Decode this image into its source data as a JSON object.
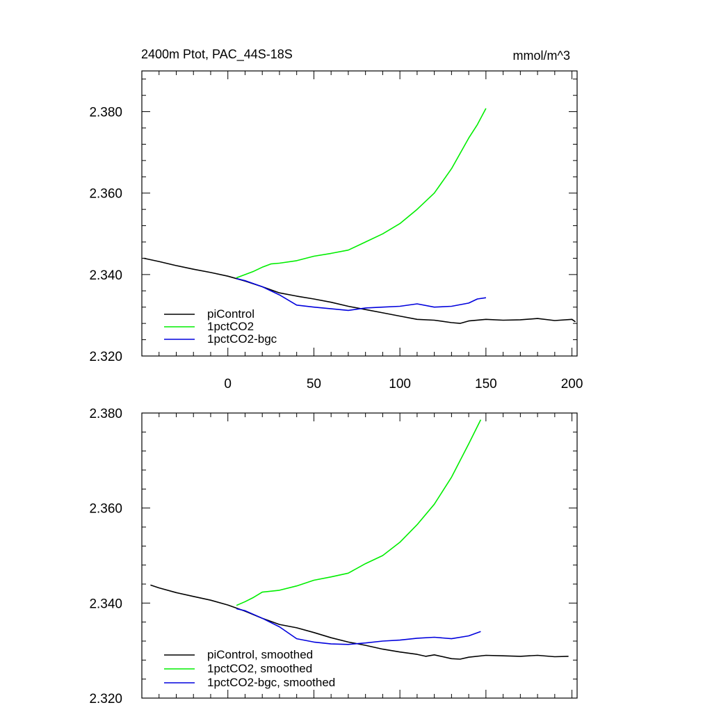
{
  "chart_data": [
    {
      "type": "line",
      "title": "2400m Ptot, PAC_44S-18S",
      "units": "mmol/m^3",
      "xlim": [
        -50,
        203
      ],
      "ylim": [
        2.32,
        2.39
      ],
      "x_ticks": [
        0,
        50,
        100,
        150,
        200
      ],
      "x_tick_labels": [
        "0",
        "50",
        "100",
        "150",
        "200"
      ],
      "y_ticks": [
        2.32,
        2.34,
        2.36,
        2.38
      ],
      "y_tick_labels": [
        "2.320",
        "2.340",
        "2.360",
        "2.380"
      ],
      "legend_position": "bottom-left",
      "series": [
        {
          "name": "piControl",
          "color": "#000000",
          "x": [
            -49,
            -40,
            -30,
            -20,
            -10,
            0,
            10,
            20,
            30,
            40,
            50,
            60,
            70,
            80,
            90,
            100,
            110,
            120,
            130,
            135,
            140,
            150,
            160,
            170,
            180,
            190,
            200,
            202
          ],
          "y": [
            2.344,
            2.3432,
            2.3422,
            2.3413,
            2.3405,
            2.3396,
            2.3384,
            2.337,
            2.3355,
            2.3347,
            2.334,
            2.3332,
            2.3322,
            2.3314,
            2.3306,
            2.3298,
            2.329,
            2.3288,
            2.3282,
            2.328,
            2.3286,
            2.329,
            2.3288,
            2.3289,
            2.3292,
            2.3287,
            2.329,
            2.3284
          ]
        },
        {
          "name": "1pctCO2",
          "color": "#00ee00",
          "x": [
            5,
            10,
            15,
            20,
            25,
            30,
            40,
            50,
            60,
            70,
            80,
            90,
            100,
            110,
            120,
            130,
            140,
            145,
            150
          ],
          "y": [
            2.3392,
            2.34,
            2.3408,
            2.3418,
            2.3426,
            2.3428,
            2.3434,
            2.3445,
            2.3452,
            2.346,
            2.348,
            2.35,
            2.3525,
            2.356,
            2.36,
            2.366,
            2.3735,
            2.3768,
            2.3808
          ]
        },
        {
          "name": "1pctCO2-bgc",
          "color": "#0000dd",
          "x": [
            5,
            10,
            20,
            30,
            40,
            50,
            60,
            70,
            80,
            90,
            100,
            110,
            120,
            130,
            140,
            145,
            150
          ],
          "y": [
            2.339,
            2.3385,
            2.337,
            2.335,
            2.3325,
            2.332,
            2.3316,
            2.3312,
            2.3318,
            2.332,
            2.3322,
            2.3328,
            2.332,
            2.3322,
            2.333,
            2.334,
            2.3343
          ]
        }
      ]
    },
    {
      "type": "line",
      "title": "",
      "xlim": [
        -50,
        203
      ],
      "ylim": [
        2.32,
        2.38
      ],
      "x_ticks": [
        0,
        50,
        100,
        150,
        200
      ],
      "x_tick_labels": [],
      "y_ticks": [
        2.32,
        2.34,
        2.36,
        2.38
      ],
      "y_tick_labels": [
        "2.320",
        "2.340",
        "2.360",
        "2.380"
      ],
      "legend_position": "bottom-left",
      "series": [
        {
          "name": "piControl, smoothed",
          "color": "#000000",
          "x": [
            -45,
            -40,
            -30,
            -20,
            -10,
            0,
            10,
            20,
            30,
            40,
            50,
            60,
            70,
            80,
            90,
            100,
            110,
            115,
            120,
            130,
            135,
            140,
            150,
            160,
            170,
            180,
            190,
            198
          ],
          "y": [
            2.3438,
            2.3432,
            2.3422,
            2.3414,
            2.3406,
            2.3396,
            2.3383,
            2.3368,
            2.3355,
            2.3348,
            2.3338,
            2.3327,
            2.3318,
            2.3311,
            2.3303,
            2.3297,
            2.3292,
            2.3288,
            2.3291,
            2.3283,
            2.3282,
            2.3286,
            2.329,
            2.3289,
            2.3288,
            2.329,
            2.3287,
            2.3288
          ]
        },
        {
          "name": "1pctCO2, smoothed",
          "color": "#00ee00",
          "x": [
            5,
            10,
            15,
            20,
            30,
            40,
            50,
            60,
            70,
            80,
            90,
            100,
            110,
            120,
            130,
            140,
            147
          ],
          "y": [
            2.3395,
            2.3403,
            2.3412,
            2.3423,
            2.3427,
            2.3436,
            2.3448,
            2.3455,
            2.3463,
            2.3483,
            2.35,
            2.3528,
            2.3565,
            2.3608,
            2.3665,
            2.3735,
            2.3786
          ]
        },
        {
          "name": "1pctCO2-bgc, smoothed",
          "color": "#0000dd",
          "x": [
            5,
            10,
            20,
            30,
            40,
            50,
            60,
            70,
            80,
            90,
            100,
            110,
            120,
            130,
            140,
            147
          ],
          "y": [
            2.3388,
            2.3384,
            2.3368,
            2.335,
            2.3325,
            2.3318,
            2.3314,
            2.3313,
            2.3316,
            2.332,
            2.3322,
            2.3326,
            2.3328,
            2.3325,
            2.3331,
            2.334
          ]
        }
      ]
    }
  ]
}
